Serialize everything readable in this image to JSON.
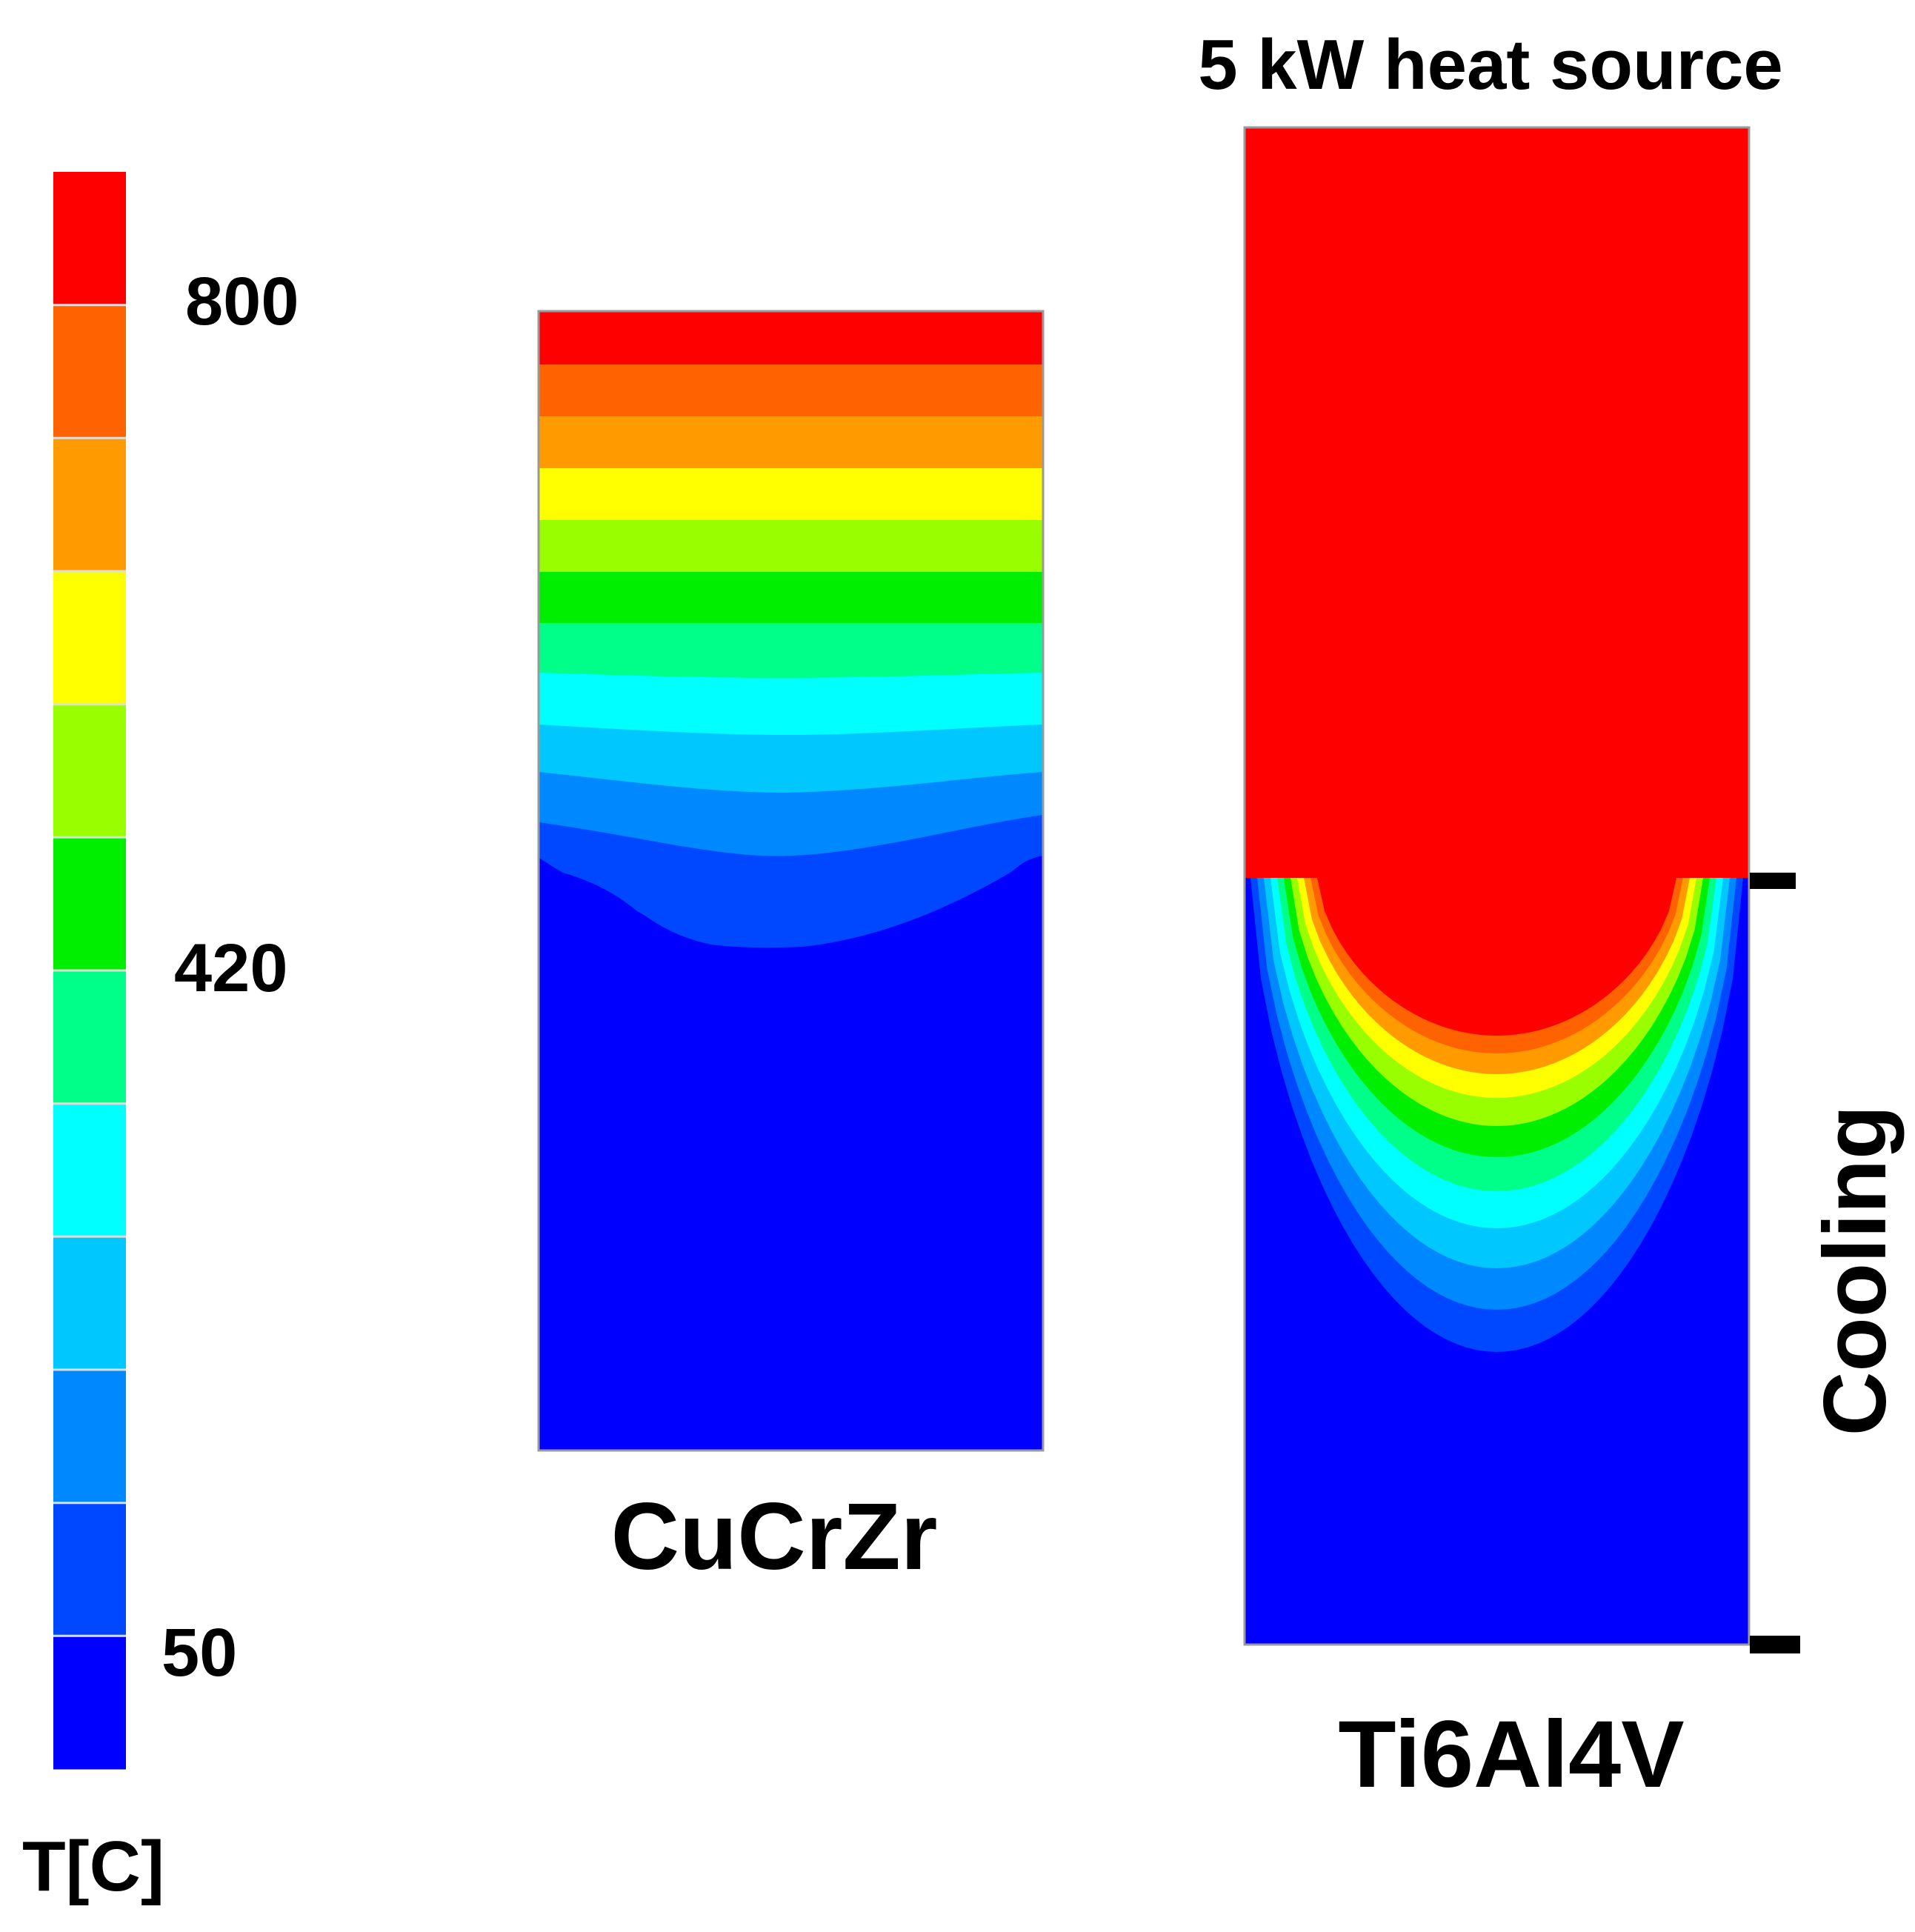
{
  "figure": {
    "heat_source_label": "5 kW heat source",
    "cooling_label": "Cooling",
    "panels": [
      {
        "material": "CuCrZr"
      },
      {
        "material": "Ti6Al4V"
      }
    ]
  },
  "colorbar": {
    "unit_label": "T[C]",
    "min": 50,
    "max": 800,
    "tick_labels": [
      "800",
      "420",
      "50"
    ],
    "band_colors": [
      "#ff0000",
      "#ff6200",
      "#ff9a00",
      "#ffff00",
      "#99ff00",
      "#00ee00",
      "#00ff88",
      "#00ffff",
      "#00c8ff",
      "#0088ff",
      "#0048ff",
      "#0000ff"
    ]
  },
  "colors": {
    "band_divider": "#dddddd"
  }
}
